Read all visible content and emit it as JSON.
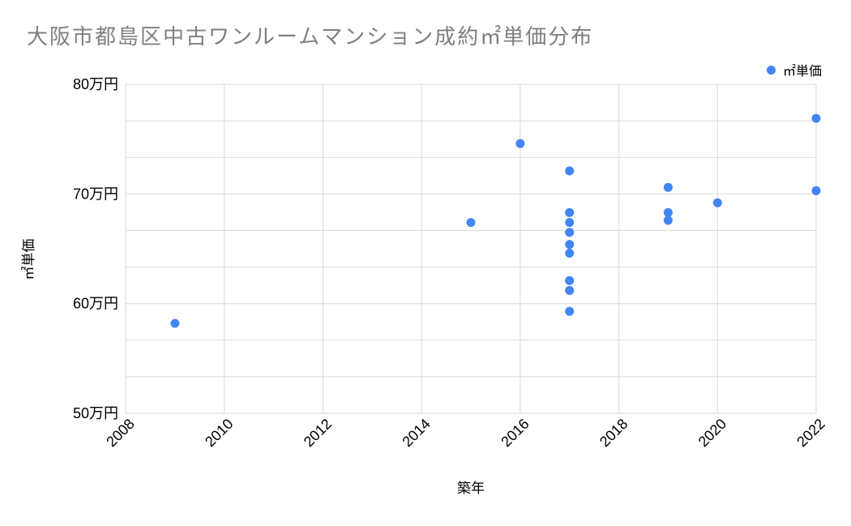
{
  "chart_data": {
    "type": "scatter",
    "title": "大阪市都島区中古ワンルームマンション成約㎡単価分布",
    "xlabel": "築年",
    "ylabel": "㎡単価",
    "legend_position": "top-right",
    "value_unit": "万円",
    "series": [
      {
        "name": "㎡単価",
        "color": "#4285f4",
        "points": [
          {
            "x": 2009,
            "y": 58.2
          },
          {
            "x": 2015,
            "y": 67.4
          },
          {
            "x": 2016,
            "y": 74.6
          },
          {
            "x": 2017,
            "y": 72.1
          },
          {
            "x": 2017,
            "y": 68.3
          },
          {
            "x": 2017,
            "y": 67.4
          },
          {
            "x": 2017,
            "y": 66.5
          },
          {
            "x": 2017,
            "y": 65.4
          },
          {
            "x": 2017,
            "y": 64.6
          },
          {
            "x": 2017,
            "y": 62.1
          },
          {
            "x": 2017,
            "y": 61.2
          },
          {
            "x": 2017,
            "y": 59.3
          },
          {
            "x": 2019,
            "y": 70.6
          },
          {
            "x": 2019,
            "y": 68.3
          },
          {
            "x": 2019,
            "y": 67.6
          },
          {
            "x": 2020,
            "y": 69.2
          },
          {
            "x": 2022,
            "y": 76.9
          },
          {
            "x": 2022,
            "y": 70.3
          }
        ]
      }
    ],
    "x_axis": {
      "min": 2008,
      "max": 2022,
      "tick_values": [
        2008,
        2010,
        2012,
        2014,
        2016,
        2018,
        2020,
        2022
      ],
      "tick_labels": [
        "2008",
        "2010",
        "2012",
        "2014",
        "2016",
        "2018",
        "2020",
        "2022"
      ],
      "label_rotation_deg": -45
    },
    "y_axis": {
      "min": 50,
      "max": 80,
      "tick_values": [
        50,
        60,
        70,
        80
      ],
      "tick_labels": [
        "50万円",
        "60万円",
        "70万円",
        "80万円"
      ],
      "minor_divisions_per_major": 3
    },
    "grid": {
      "horizontal": true,
      "vertical": true,
      "color": "#d9d9d9"
    },
    "point_radius": 5.5,
    "colors": {
      "point": "#4285f4",
      "title_text": "#7f7f7f",
      "axis_text": "#000000",
      "background": "#ffffff"
    }
  }
}
